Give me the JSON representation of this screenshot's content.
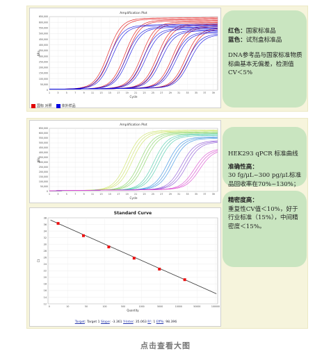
{
  "panel1": {
    "chart": {
      "title": "Amplification Plot",
      "xlabel": "Cycle",
      "ylabel": "ΔRn",
      "y_ticks": [
        "0",
        "50,000",
        "100,000",
        "150,000",
        "200,000",
        "250,000",
        "300,000",
        "350,000",
        "400,000",
        "450,000",
        "500,000",
        "550,000",
        "600,000",
        "650,000"
      ],
      "x_ticks": [
        "1",
        "2",
        "3",
        "4",
        "5",
        "6",
        "7",
        "8",
        "9",
        "10",
        "11",
        "12",
        "13",
        "14",
        "15",
        "16",
        "17",
        "18",
        "19",
        "20",
        "21",
        "22",
        "23",
        "24",
        "25",
        "26",
        "27",
        "28",
        "29",
        "30",
        "31",
        "32",
        "33",
        "34",
        "35",
        "36",
        "37",
        "38",
        "39",
        "40"
      ],
      "legend": [
        {
          "label": "国标 对照",
          "color": "#e00000"
        },
        {
          "label": "体外样品",
          "color": "#0000e0"
        }
      ]
    },
    "note": {
      "red_label": "红色：",
      "red_text": "国家标准品",
      "blue_label": "蓝色：",
      "blue_text": "试剂盒标准品",
      "conclusion": "DNA参考品与国家标准物质标曲基本无偏差，检测值CV＜5%"
    }
  },
  "panel2": {
    "chart2": {
      "title": "Amplification Plot",
      "xlabel": "Cycle",
      "ylabel": "ΔRn",
      "y_ticks": [
        "0",
        "50,000",
        "100,000",
        "150,000",
        "200,000",
        "250,000",
        "300,000",
        "350,000",
        "400,000",
        "450,000",
        "500,000",
        "550,000",
        "600,000",
        "650,000"
      ],
      "x_ticks": [
        "1",
        "2",
        "3",
        "4",
        "5",
        "6",
        "7",
        "8",
        "9",
        "10",
        "11",
        "12",
        "13",
        "14",
        "15",
        "16",
        "17",
        "18",
        "19",
        "20",
        "21",
        "22",
        "23",
        "24",
        "25",
        "26",
        "27",
        "28",
        "29",
        "30",
        "31",
        "32",
        "33",
        "34",
        "35",
        "36",
        "37",
        "38",
        "39",
        "40"
      ]
    },
    "chart3": {
      "title": "Standard Curve",
      "xlabel": "Quantity",
      "ylabel": "Ct",
      "y_ticks": [
        "12",
        "14",
        "16",
        "18",
        "20",
        "22",
        "24",
        "26",
        "28",
        "30",
        "32",
        "34",
        "36",
        "38"
      ],
      "x_ticks": [
        "0",
        "10",
        "50",
        "100",
        "500",
        "1000",
        "5000",
        "10000",
        "50000",
        "100000"
      ],
      "stats": {
        "target_label": "Target",
        "target_value": "Target 1",
        "slope_label": "Slope",
        "slope_value": "-3.361",
        "yinter_label": "Y-Inter",
        "yinter_value": "35.063",
        "r2_label": "R²",
        "r2_value": "1",
        "eff_label": "Eff%",
        "eff_value": "98.396"
      }
    },
    "note_top": {
      "title": "HEK293 qPCR 标准曲线",
      "accuracy_label": "准确性高：",
      "accuracy_text": "30 fg/μL~300 pg/μL标准品回收率在70%~130%；"
    },
    "note_bottom": {
      "precision_label": "精密度高：",
      "precision_text": "重复性CV值＜10%，好于行业标准（15%），中间精密度＜15%。"
    }
  },
  "footer": {
    "view_large": "点击查看大图"
  },
  "chart_data": [
    {
      "type": "line",
      "title": "Amplification Plot",
      "xlabel": "Cycle",
      "ylabel": "ΔRn",
      "xlim": [
        1,
        40
      ],
      "ylim": [
        0,
        650000
      ],
      "series_groups": [
        {
          "name": "国标 对照",
          "color": "#e00000",
          "midpoints": [
            14.6,
            15.2,
            18.5,
            19.0,
            22.4,
            23.0,
            26.0,
            26.6,
            29.5,
            30.0,
            32.6,
            33.2
          ],
          "plateau": 620000
        },
        {
          "name": "体外样品",
          "color": "#0000e0",
          "midpoints": [
            14.9,
            15.5,
            18.8,
            19.3,
            22.7,
            23.3,
            26.3,
            26.9,
            29.8,
            30.3,
            32.9,
            33.5
          ],
          "plateau": 560000
        }
      ]
    },
    {
      "type": "line",
      "title": "Amplification Plot",
      "xlabel": "Cycle",
      "ylabel": "ΔRn",
      "xlim": [
        1,
        40
      ],
      "ylim": [
        0,
        650000
      ],
      "series_groups": [
        {
          "color": "#c9e35a",
          "midpoints": [
            19.0,
            19.6,
            20.2
          ],
          "plateau": 610000
        },
        {
          "color": "#7fd45a",
          "midpoints": [
            22.0,
            22.6,
            23.2
          ],
          "plateau": 590000
        },
        {
          "color": "#3fc9a4",
          "midpoints": [
            25.2,
            25.8,
            26.4
          ],
          "plateau": 570000
        },
        {
          "color": "#2f8ce0",
          "midpoints": [
            28.4,
            29.0,
            29.6
          ],
          "plateau": 540000
        },
        {
          "color": "#8a4fd6",
          "midpoints": [
            31.6,
            32.2,
            32.8
          ],
          "plateau": 500000
        },
        {
          "color": "#d93fcf",
          "midpoints": [
            34.6,
            35.2,
            35.8
          ],
          "plateau": 420000
        }
      ]
    },
    {
      "type": "scatter",
      "title": "Standard Curve",
      "xlabel": "Quantity",
      "ylabel": "Ct",
      "xscale": "log",
      "ylim": [
        12,
        38
      ],
      "x": [
        0.1,
        1,
        10,
        100,
        1000,
        10000
      ],
      "y": [
        36.3,
        32.6,
        29.2,
        25.8,
        22.5,
        19.3
      ],
      "fit": {
        "slope": -3.361,
        "y_intercept": 35.063,
        "r2": 1,
        "efficiency": 98.396
      },
      "marker_color": "#ee1111",
      "line_color": "#333333"
    }
  ]
}
